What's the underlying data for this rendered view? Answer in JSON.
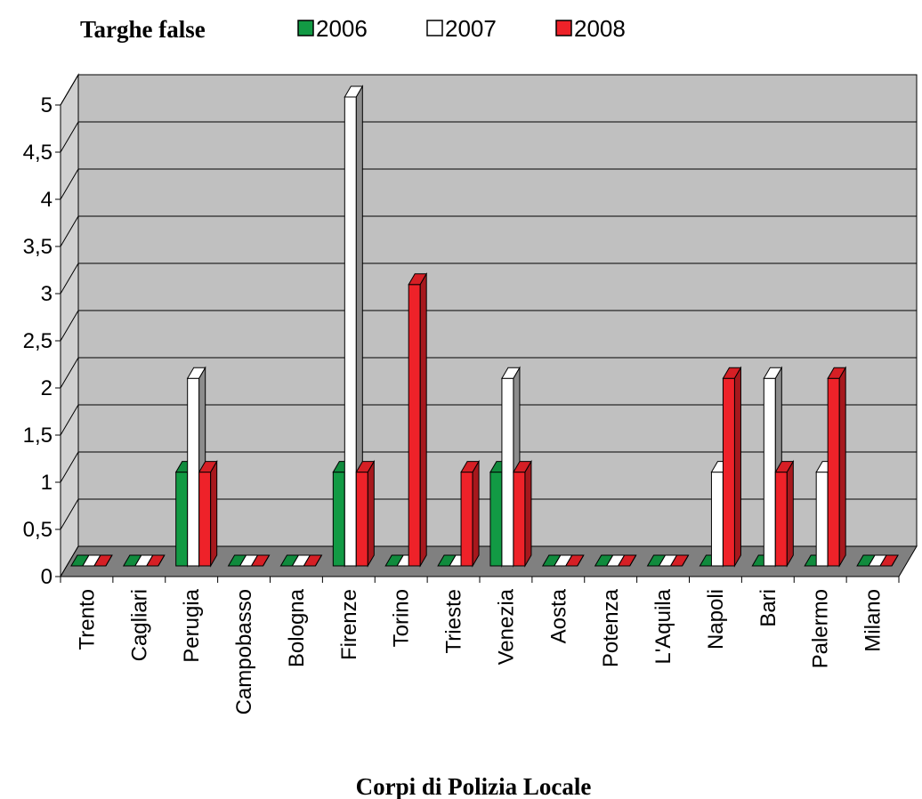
{
  "chart_data": {
    "type": "bar",
    "title": "Targhe false",
    "xlabel": "Corpi di Polizia Locale",
    "ylabel": "",
    "ylim": [
      0,
      5
    ],
    "yticks": [
      "0",
      "0,5",
      "1",
      "1,5",
      "2",
      "2,5",
      "3",
      "3,5",
      "4",
      "4,5",
      "5"
    ],
    "categories": [
      "Trento",
      "Cagliari",
      "Perugia",
      "Campobasso",
      "Bologna",
      "Firenze",
      "Torino",
      "Trieste",
      "Venezia",
      "Aosta",
      "Potenza",
      "L'Aquila",
      "Napoli",
      "Bari",
      "Palermo",
      "Milano"
    ],
    "series": [
      {
        "name": "2006",
        "color": "#129a44",
        "values": [
          0,
          0,
          1,
          0,
          0,
          1,
          0,
          0,
          1,
          0,
          0,
          0,
          0,
          0,
          0,
          0
        ]
      },
      {
        "name": "2007",
        "color": "#ffffff",
        "values": [
          0,
          0,
          2,
          0,
          0,
          5,
          0,
          0,
          2,
          0,
          0,
          0,
          1,
          2,
          1,
          0
        ]
      },
      {
        "name": "2008",
        "color": "#ee2229",
        "values": [
          0,
          0,
          1,
          0,
          0,
          1,
          3,
          1,
          1,
          0,
          0,
          0,
          2,
          1,
          2,
          0
        ]
      }
    ],
    "legend_position": "top",
    "grid": true,
    "style": "3d"
  }
}
